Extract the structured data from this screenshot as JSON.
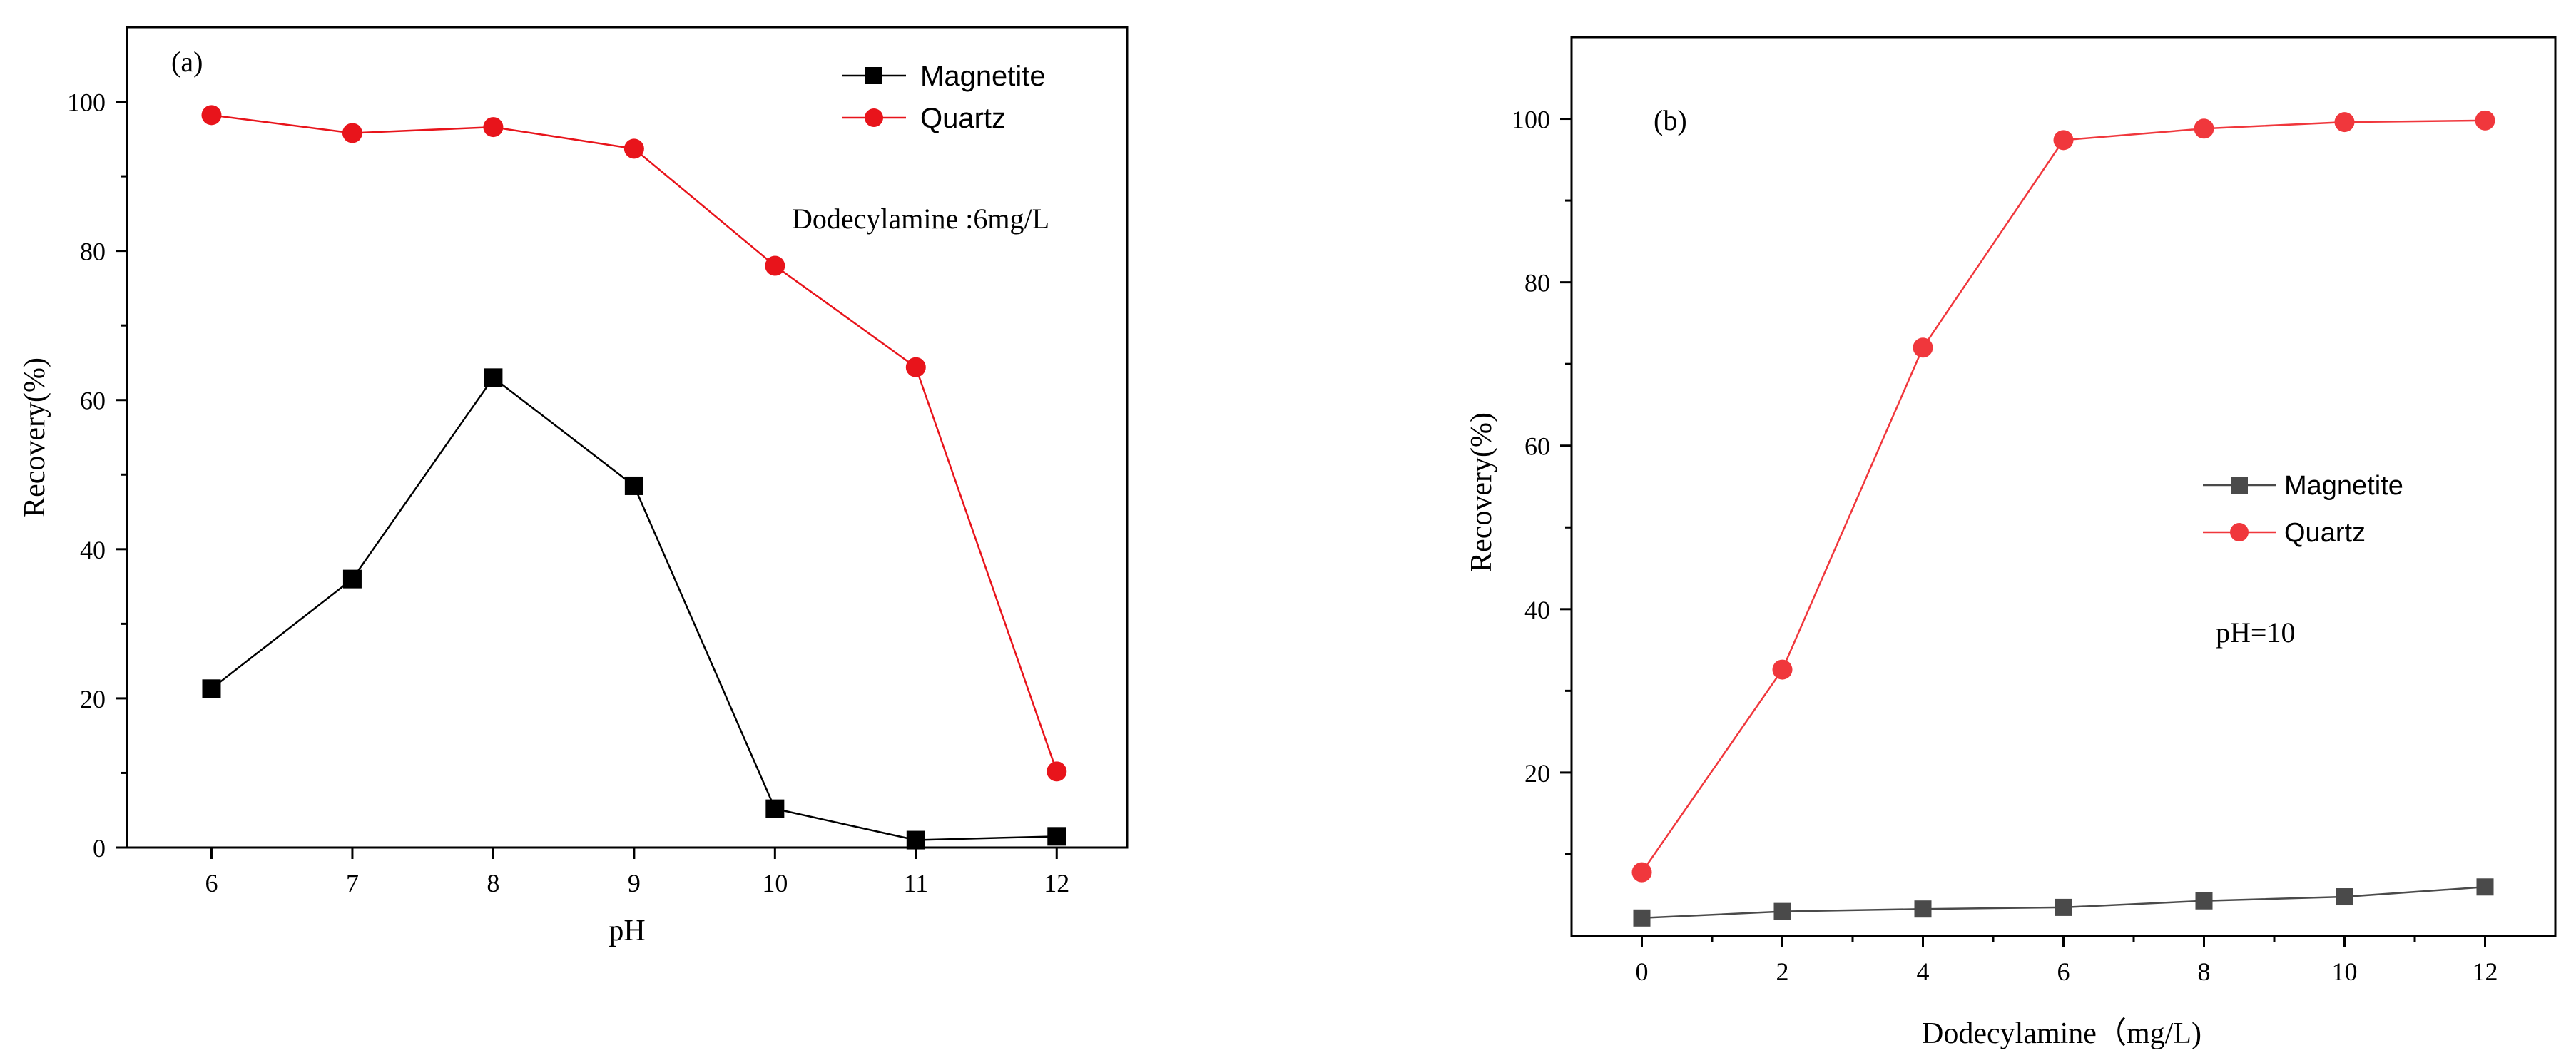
{
  "chart_data": [
    {
      "type": "line",
      "panel_label": "(a)",
      "xlabel": "pH",
      "ylabel": "Recovery(%)",
      "annotation": "Dodecylamine :6mg/L",
      "x": [
        6,
        7,
        8,
        9,
        10,
        11,
        12
      ],
      "xlim": [
        5.4,
        12.5
      ],
      "ylim": [
        0,
        110
      ],
      "xticks": [
        "6",
        "7",
        "8",
        "9",
        "10",
        "11",
        "12"
      ],
      "yticks": [
        "0",
        "20",
        "40",
        "60",
        "80",
        "100"
      ],
      "xtick_values": [
        6,
        7,
        8,
        9,
        10,
        11,
        12
      ],
      "ytick_values": [
        0,
        20,
        40,
        60,
        80,
        100
      ],
      "legend_position": "top-right",
      "series": [
        {
          "name": "Magnetite",
          "values": [
            21.3,
            36.0,
            63.0,
            48.5,
            5.2,
            1.0,
            1.5
          ],
          "color": "#000000",
          "marker": "square"
        },
        {
          "name": "Quartz",
          "values": [
            98.2,
            95.8,
            96.6,
            93.7,
            78.0,
            64.4,
            10.2
          ],
          "color": "#e8141b",
          "marker": "circle"
        }
      ]
    },
    {
      "type": "line",
      "panel_label": "(b)",
      "xlabel": "Dodecylamine（mg/L)",
      "ylabel": "Recovery(%)",
      "annotation": "pH=10",
      "x": [
        0,
        2,
        4,
        6,
        8,
        10,
        12
      ],
      "xlim": [
        -1,
        13
      ],
      "ylim": [
        0,
        110
      ],
      "xticks": [
        "0",
        "2",
        "4",
        "6",
        "8",
        "10",
        "12"
      ],
      "yticks": [
        "20",
        "40",
        "60",
        "80",
        "100"
      ],
      "xtick_values": [
        0,
        2,
        4,
        6,
        8,
        10,
        12
      ],
      "ytick_values": [
        20,
        40,
        60,
        80,
        100
      ],
      "legend_position": "center-right",
      "series": [
        {
          "name": "Magnetite",
          "values": [
            2.2,
            3.0,
            3.3,
            3.5,
            4.3,
            4.8,
            6.0
          ],
          "color": "#4a4a4a",
          "marker": "square"
        },
        {
          "name": "Quartz",
          "values": [
            7.8,
            32.6,
            72.0,
            97.4,
            98.8,
            99.6,
            99.8
          ],
          "color": "#f0373c",
          "marker": "circle"
        }
      ]
    }
  ]
}
